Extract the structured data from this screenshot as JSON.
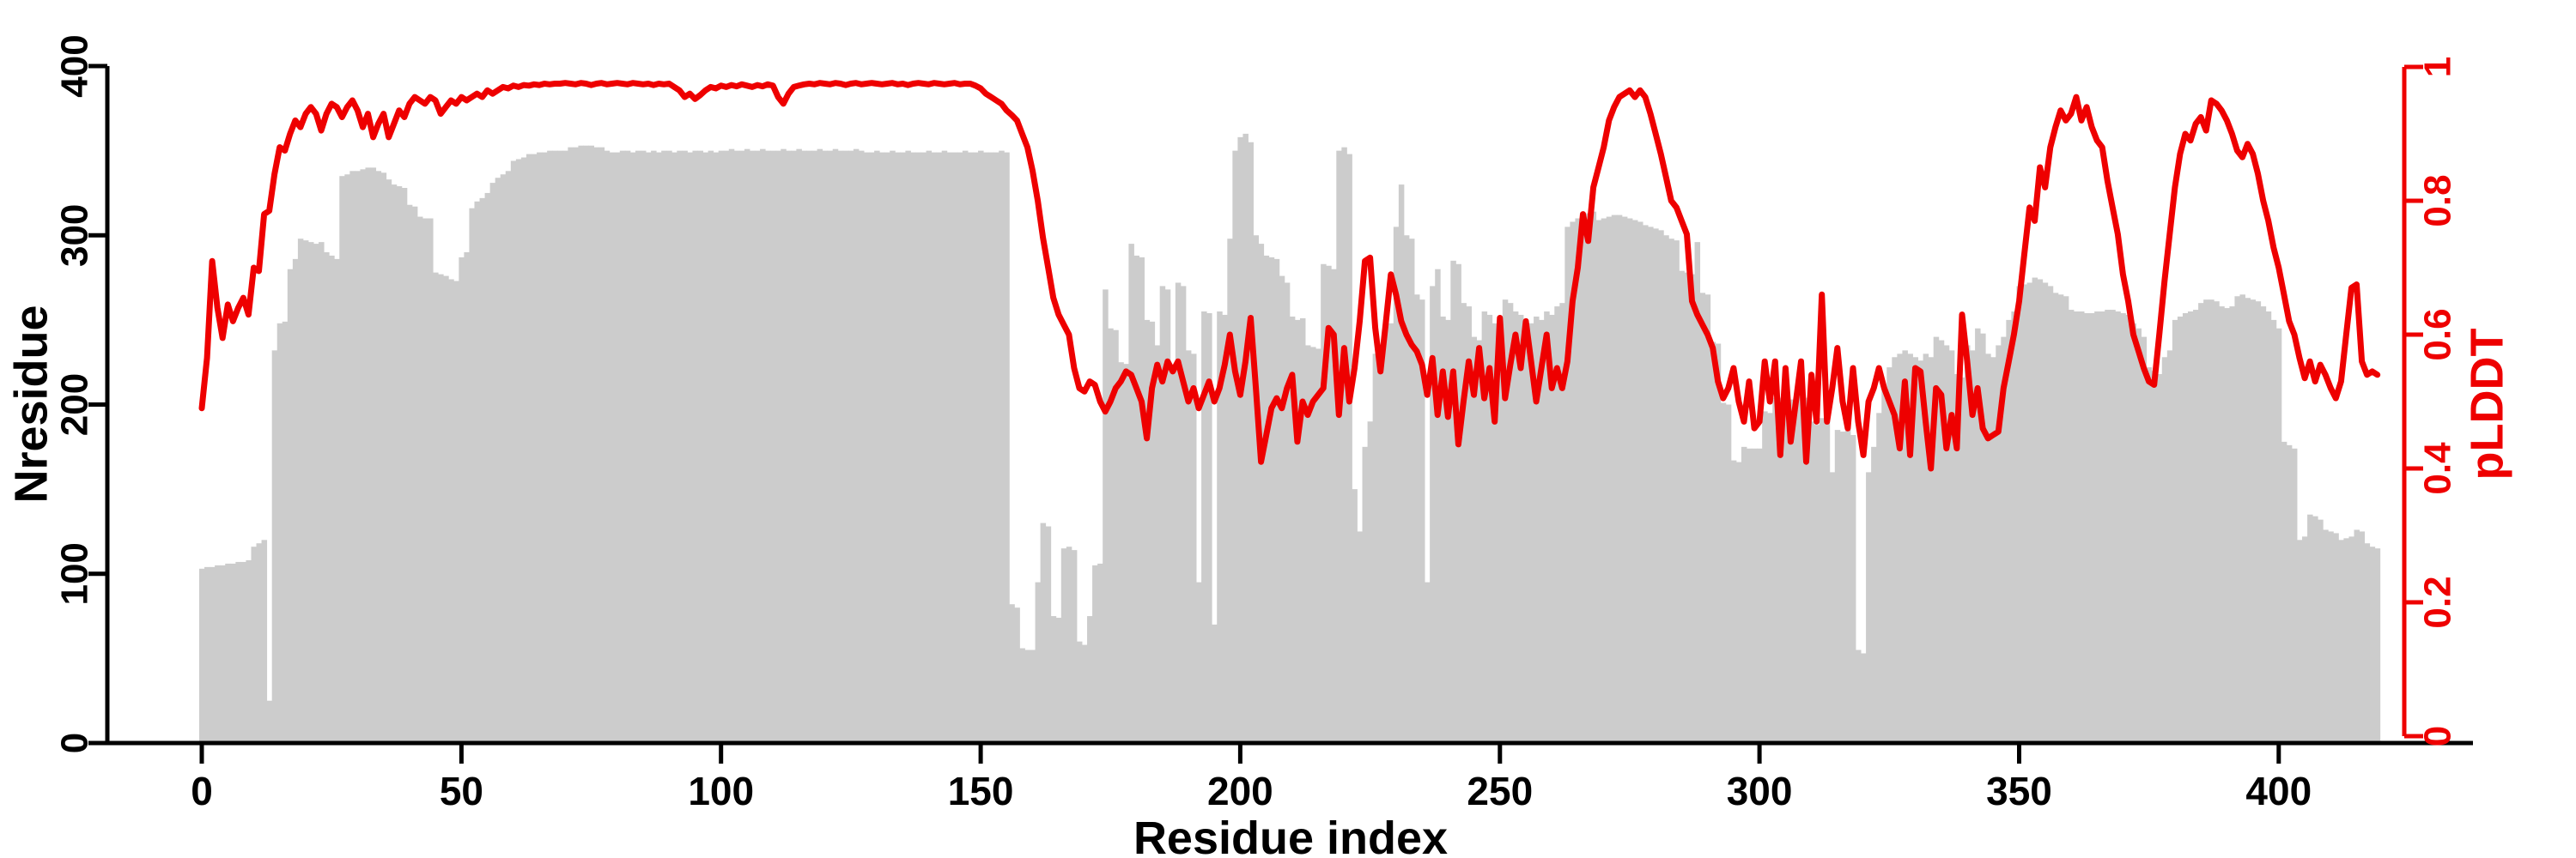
{
  "figure": {
    "background": "#ffffff",
    "bar_color": "#cccccc",
    "line_color": "#ee0000",
    "axis_color": "#000000"
  },
  "chart_data": {
    "type": "combo",
    "title": "",
    "grid": false,
    "legend": "none",
    "x_axis": {
      "label": "Residue index",
      "start": 0,
      "step": 1,
      "count": 420,
      "ticks": [
        0,
        50,
        100,
        150,
        200,
        250,
        300,
        350,
        400
      ],
      "tick_labels": [
        "0",
        "50",
        "100",
        "150",
        "200",
        "250",
        "300",
        "350",
        "400"
      ]
    },
    "left_axis": {
      "label": "Nresidue",
      "range": [
        0,
        400
      ],
      "ticks": [
        0,
        100,
        200,
        300,
        400
      ],
      "tick_labels": [
        "0",
        "100",
        "200",
        "300",
        "400"
      ],
      "color": "#000000"
    },
    "right_axis": {
      "label": "pLDDT",
      "range": [
        0,
        1
      ],
      "ticks": [
        0,
        0.2,
        0.4,
        0.6,
        0.8,
        1
      ],
      "tick_labels": [
        "0",
        "0.2",
        "0.4",
        "0.6",
        "0.8",
        "1"
      ],
      "color": "#ee0000"
    },
    "series": [
      {
        "name": "Nresidue",
        "type": "bar",
        "axis": "left",
        "color": "#cccccc",
        "values": [
          103,
          104,
          104,
          105,
          105,
          106,
          106,
          107,
          107,
          108,
          116,
          118,
          120,
          25,
          232,
          248,
          249,
          280,
          286,
          298,
          297,
          296,
          295,
          296,
          290,
          288,
          286,
          335,
          336,
          338,
          338,
          339,
          340,
          340,
          338,
          337,
          333,
          330,
          329,
          328,
          318,
          317,
          311,
          310,
          310,
          278,
          277,
          276,
          274,
          273,
          287,
          290,
          316,
          320,
          322,
          325,
          331,
          334,
          336,
          338,
          344,
          345,
          346,
          348,
          348,
          349,
          349,
          350,
          350,
          350,
          350,
          352,
          352,
          353,
          353,
          353,
          352,
          352,
          350,
          349,
          349,
          350,
          350,
          349,
          350,
          350,
          349,
          350,
          349,
          350,
          350,
          349,
          350,
          350,
          349,
          350,
          350,
          349,
          350,
          349,
          350,
          350,
          351,
          350,
          350,
          351,
          350,
          350,
          351,
          350,
          350,
          350,
          351,
          350,
          350,
          351,
          350,
          350,
          350,
          351,
          350,
          350,
          351,
          350,
          350,
          350,
          351,
          350,
          349,
          349,
          350,
          349,
          349,
          350,
          349,
          349,
          350,
          349,
          349,
          349,
          350,
          349,
          349,
          350,
          349,
          349,
          349,
          350,
          349,
          349,
          350,
          349,
          349,
          349,
          350,
          349,
          82,
          80,
          56,
          55,
          55,
          95,
          130,
          128,
          75,
          74,
          115,
          116,
          114,
          60,
          58,
          75,
          105,
          106,
          268,
          245,
          244,
          225,
          224,
          295,
          288,
          287,
          250,
          249,
          235,
          270,
          268,
          222,
          272,
          270,
          232,
          230,
          95,
          255,
          254,
          70,
          255,
          253,
          298,
          350,
          358,
          360,
          355,
          300,
          295,
          288,
          287,
          286,
          276,
          272,
          252,
          250,
          251,
          235,
          234,
          233,
          283,
          282,
          280,
          350,
          352,
          348,
          150,
          125,
          175,
          190,
          230,
          228,
          250,
          248,
          305,
          330,
          300,
          298,
          265,
          262,
          95,
          270,
          280,
          252,
          250,
          285,
          283,
          260,
          258,
          240,
          238,
          255,
          253,
          248,
          246,
          262,
          260,
          255,
          253,
          250,
          248,
          252,
          250,
          255,
          253,
          258,
          260,
          305,
          308,
          310,
          312,
          313,
          314,
          309,
          310,
          311,
          312,
          312,
          311,
          310,
          309,
          308,
          306,
          305,
          304,
          303,
          300,
          298,
          297,
          279,
          278,
          277,
          296,
          266,
          265,
          237,
          236,
          201,
          200,
          167,
          166,
          175,
          174,
          174,
          174,
          196,
          195,
          204,
          204,
          203,
          203,
          202,
          205,
          204,
          190,
          188,
          192,
          190,
          160,
          185,
          184,
          185,
          182,
          55,
          53,
          160,
          175,
          195,
          210,
          222,
          228,
          230,
          232,
          230,
          228,
          226,
          230,
          228,
          240,
          238,
          235,
          232,
          218,
          216,
          235,
          232,
          245,
          242,
          230,
          228,
          235,
          240,
          250,
          255,
          270,
          271,
          272,
          275,
          274,
          272,
          270,
          266,
          265,
          264,
          256,
          255,
          255,
          254,
          254,
          255,
          255,
          256,
          256,
          255,
          254,
          253,
          248,
          245,
          240,
          222,
          220,
          218,
          228,
          232,
          250,
          252,
          254,
          255,
          256,
          260,
          262,
          262,
          261,
          258,
          257,
          258,
          264,
          265,
          263,
          262,
          261,
          258,
          255,
          250,
          245,
          178,
          176,
          174,
          120,
          122,
          135,
          134,
          132,
          126,
          125,
          124,
          120,
          121,
          122,
          126,
          125,
          118,
          116,
          115
        ]
      },
      {
        "name": "pLDDT",
        "type": "line",
        "axis": "right",
        "color": "#ee0000",
        "values": [
          0.49,
          0.565,
          0.71,
          0.64,
          0.595,
          0.645,
          0.62,
          0.64,
          0.655,
          0.63,
          0.7,
          0.695,
          0.78,
          0.785,
          0.84,
          0.88,
          0.875,
          0.9,
          0.92,
          0.91,
          0.93,
          0.94,
          0.93,
          0.905,
          0.93,
          0.945,
          0.94,
          0.925,
          0.94,
          0.95,
          0.935,
          0.91,
          0.93,
          0.895,
          0.915,
          0.93,
          0.895,
          0.915,
          0.935,
          0.925,
          0.945,
          0.955,
          0.95,
          0.945,
          0.955,
          0.95,
          0.93,
          0.94,
          0.95,
          0.945,
          0.955,
          0.95,
          0.955,
          0.96,
          0.955,
          0.965,
          0.96,
          0.965,
          0.97,
          0.968,
          0.972,
          0.97,
          0.973,
          0.972,
          0.974,
          0.973,
          0.975,
          0.974,
          0.975,
          0.975,
          0.976,
          0.975,
          0.974,
          0.976,
          0.975,
          0.973,
          0.975,
          0.976,
          0.974,
          0.975,
          0.976,
          0.975,
          0.974,
          0.976,
          0.975,
          0.974,
          0.975,
          0.973,
          0.975,
          0.974,
          0.975,
          0.97,
          0.965,
          0.955,
          0.96,
          0.952,
          0.958,
          0.965,
          0.97,
          0.968,
          0.972,
          0.97,
          0.973,
          0.971,
          0.974,
          0.972,
          0.97,
          0.973,
          0.971,
          0.974,
          0.972,
          0.955,
          0.945,
          0.96,
          0.97,
          0.972,
          0.974,
          0.975,
          0.974,
          0.976,
          0.975,
          0.974,
          0.976,
          0.975,
          0.973,
          0.975,
          0.976,
          0.974,
          0.975,
          0.976,
          0.975,
          0.974,
          0.975,
          0.976,
          0.974,
          0.975,
          0.973,
          0.975,
          0.976,
          0.975,
          0.974,
          0.976,
          0.975,
          0.974,
          0.975,
          0.976,
          0.974,
          0.975,
          0.975,
          0.972,
          0.968,
          0.96,
          0.955,
          0.95,
          0.945,
          0.935,
          0.928,
          0.92,
          0.9,
          0.88,
          0.845,
          0.8,
          0.745,
          0.7,
          0.655,
          0.63,
          0.615,
          0.6,
          0.55,
          0.52,
          0.515,
          0.53,
          0.525,
          0.5,
          0.485,
          0.5,
          0.52,
          0.53,
          0.545,
          0.54,
          0.52,
          0.5,
          0.445,
          0.52,
          0.555,
          0.53,
          0.56,
          0.545,
          0.56,
          0.53,
          0.5,
          0.52,
          0.49,
          0.51,
          0.53,
          0.5,
          0.52,
          0.555,
          0.6,
          0.545,
          0.51,
          0.56,
          0.625,
          0.52,
          0.41,
          0.45,
          0.49,
          0.505,
          0.49,
          0.52,
          0.54,
          0.44,
          0.5,
          0.48,
          0.5,
          0.51,
          0.52,
          0.61,
          0.6,
          0.48,
          0.58,
          0.5,
          0.55,
          0.62,
          0.71,
          0.715,
          0.61,
          0.545,
          0.615,
          0.69,
          0.66,
          0.62,
          0.6,
          0.585,
          0.575,
          0.555,
          0.51,
          0.565,
          0.48,
          0.545,
          0.477,
          0.545,
          0.436,
          0.5,
          0.56,
          0.51,
          0.58,
          0.505,
          0.55,
          0.47,
          0.625,
          0.505,
          0.555,
          0.6,
          0.55,
          0.62,
          0.56,
          0.5,
          0.55,
          0.6,
          0.52,
          0.55,
          0.52,
          0.56,
          0.65,
          0.7,
          0.78,
          0.74,
          0.82,
          0.85,
          0.88,
          0.92,
          0.94,
          0.955,
          0.96,
          0.965,
          0.955,
          0.965,
          0.955,
          0.93,
          0.9,
          0.87,
          0.835,
          0.8,
          0.79,
          0.77,
          0.75,
          0.65,
          0.63,
          0.615,
          0.6,
          0.58,
          0.53,
          0.505,
          0.52,
          0.55,
          0.5,
          0.47,
          0.53,
          0.46,
          0.47,
          0.56,
          0.5,
          0.56,
          0.42,
          0.55,
          0.44,
          0.5,
          0.56,
          0.41,
          0.54,
          0.47,
          0.66,
          0.47,
          0.52,
          0.58,
          0.5,
          0.46,
          0.55,
          0.47,
          0.42,
          0.5,
          0.52,
          0.55,
          0.52,
          0.5,
          0.48,
          0.43,
          0.53,
          0.42,
          0.55,
          0.545,
          0.47,
          0.4,
          0.52,
          0.51,
          0.43,
          0.48,
          0.43,
          0.63,
          0.56,
          0.48,
          0.52,
          0.46,
          0.445,
          0.45,
          0.455,
          0.52,
          0.56,
          0.6,
          0.65,
          0.72,
          0.79,
          0.77,
          0.85,
          0.82,
          0.88,
          0.91,
          0.935,
          0.92,
          0.93,
          0.955,
          0.92,
          0.94,
          0.91,
          0.89,
          0.88,
          0.83,
          0.79,
          0.75,
          0.69,
          0.65,
          0.6,
          0.575,
          0.55,
          0.53,
          0.525,
          0.6,
          0.68,
          0.75,
          0.82,
          0.87,
          0.9,
          0.89,
          0.915,
          0.925,
          0.905,
          0.95,
          0.945,
          0.935,
          0.92,
          0.9,
          0.875,
          0.865,
          0.885,
          0.87,
          0.84,
          0.8,
          0.77,
          0.73,
          0.7,
          0.66,
          0.62,
          0.6,
          0.565,
          0.535,
          0.56,
          0.53,
          0.555,
          0.54,
          0.52,
          0.505,
          0.53,
          0.6,
          0.67,
          0.675,
          0.56,
          0.54,
          0.545,
          0.54
        ]
      }
    ]
  }
}
